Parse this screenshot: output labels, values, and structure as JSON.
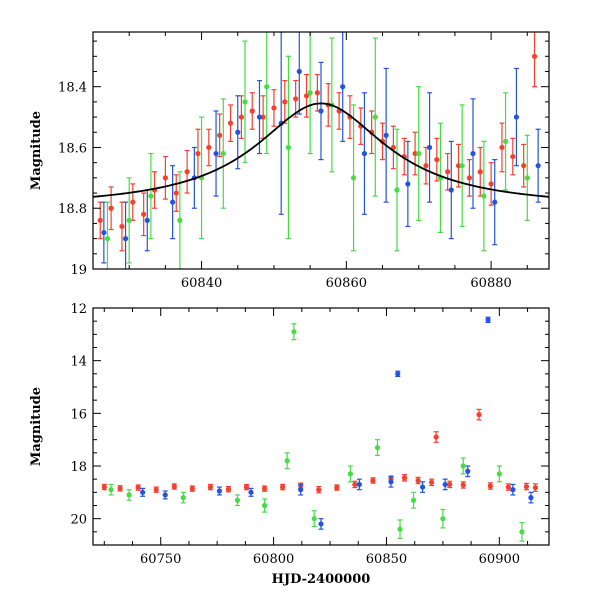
{
  "chart_data": [
    {
      "type": "scatter",
      "title": "",
      "xlabel": "",
      "ylabel": "Magnitude",
      "xlim": [
        60825,
        60888
      ],
      "ylim": [
        19.0,
        18.22
      ],
      "y_inverted": true,
      "x_ticks": [
        60840,
        60860,
        60880
      ],
      "y_ticks": [
        18.4,
        18.6,
        18.8,
        19
      ],
      "y_tick_labels": [
        "18.4",
        "18.6",
        "18.8",
        "19"
      ],
      "grid": false,
      "legend": "none",
      "series": [
        {
          "color": "#f5402e",
          "points": [
            [
              60826,
              18.84,
              0.06
            ],
            [
              60827.5,
              18.8,
              0.07
            ],
            [
              60829,
              18.86,
              0.08
            ],
            [
              60830.5,
              18.78,
              0.06
            ],
            [
              60832,
              18.82,
              0.07
            ],
            [
              60833.5,
              18.74,
              0.06
            ],
            [
              60835,
              18.7,
              0.07
            ],
            [
              60836.5,
              18.75,
              0.06
            ],
            [
              60838,
              18.68,
              0.07
            ],
            [
              60839.5,
              18.62,
              0.08
            ],
            [
              60841,
              18.6,
              0.06
            ],
            [
              60842.5,
              18.56,
              0.07
            ],
            [
              60844,
              18.52,
              0.06
            ],
            [
              60845.5,
              18.5,
              0.07
            ],
            [
              60847,
              18.48,
              0.06
            ],
            [
              60848.5,
              18.5,
              0.07
            ],
            [
              60850,
              18.47,
              0.06
            ],
            [
              60851.5,
              18.45,
              0.07
            ],
            [
              60853,
              18.44,
              0.06
            ],
            [
              60854.5,
              18.43,
              0.07
            ],
            [
              60856,
              18.42,
              0.06
            ],
            [
              60857.5,
              18.46,
              0.07
            ],
            [
              60859,
              18.48,
              0.06
            ],
            [
              60860.5,
              18.5,
              0.07
            ],
            [
              60862,
              18.53,
              0.06
            ],
            [
              60863.5,
              18.55,
              0.07
            ],
            [
              60865,
              18.58,
              0.06
            ],
            [
              60866.5,
              18.6,
              0.07
            ],
            [
              60868,
              18.63,
              0.06
            ],
            [
              60869.5,
              18.62,
              0.07
            ],
            [
              60871,
              18.66,
              0.06
            ],
            [
              60872.5,
              18.64,
              0.07
            ],
            [
              60874,
              18.68,
              0.06
            ],
            [
              60875.5,
              18.66,
              0.07
            ],
            [
              60877,
              18.7,
              0.06
            ],
            [
              60878.5,
              18.68,
              0.08
            ],
            [
              60880,
              18.72,
              0.07
            ],
            [
              60881.5,
              18.6,
              0.08
            ],
            [
              60883,
              18.63,
              0.06
            ],
            [
              60884.5,
              18.66,
              0.07
            ],
            [
              60886,
              18.3,
              0.1
            ]
          ]
        },
        {
          "color": "#2255dd",
          "points": [
            [
              60826.5,
              18.88,
              0.1
            ],
            [
              60829.5,
              18.9,
              0.12
            ],
            [
              60832.5,
              18.84,
              0.1
            ],
            [
              60836,
              18.78,
              0.12
            ],
            [
              60839,
              18.7,
              0.1
            ],
            [
              60842,
              18.62,
              0.14
            ],
            [
              60845,
              18.55,
              0.12
            ],
            [
              60848,
              18.5,
              0.12
            ],
            [
              60851,
              18.52,
              0.3
            ],
            [
              60853.5,
              18.35,
              0.14
            ],
            [
              60856.5,
              18.48,
              0.16
            ],
            [
              60859.5,
              18.4,
              0.18
            ],
            [
              60862.5,
              18.62,
              0.2
            ],
            [
              60865.5,
              18.56,
              0.22
            ],
            [
              60868.5,
              18.72,
              0.14
            ],
            [
              60871.5,
              18.6,
              0.18
            ],
            [
              60874.5,
              18.74,
              0.16
            ],
            [
              60877.5,
              18.62,
              0.18
            ],
            [
              60880.5,
              18.78,
              0.14
            ],
            [
              60883.5,
              18.5,
              0.16
            ],
            [
              60886.5,
              18.66,
              0.12
            ]
          ]
        },
        {
          "color": "#44dd44",
          "points": [
            [
              60827,
              18.9,
              0.12
            ],
            [
              60830,
              18.84,
              0.14
            ],
            [
              60833,
              18.76,
              0.14
            ],
            [
              60837,
              18.84,
              0.16
            ],
            [
              60840,
              18.7,
              0.2
            ],
            [
              60843,
              18.62,
              0.18
            ],
            [
              60846,
              18.45,
              0.2
            ],
            [
              60849,
              18.4,
              0.22
            ],
            [
              60852,
              18.6,
              0.3
            ],
            [
              60855,
              18.42,
              0.2
            ],
            [
              60858,
              18.46,
              0.22
            ],
            [
              60861,
              18.7,
              0.24
            ],
            [
              60864,
              18.5,
              0.26
            ],
            [
              60867,
              18.74,
              0.2
            ],
            [
              60870,
              18.62,
              0.22
            ],
            [
              60873,
              18.7,
              0.18
            ],
            [
              60876,
              18.66,
              0.2
            ],
            [
              60879,
              18.76,
              0.18
            ],
            [
              60882,
              18.58,
              0.16
            ],
            [
              60885,
              18.7,
              0.14
            ]
          ]
        }
      ],
      "model_curve": {
        "color": "#000000",
        "baseline": 18.8,
        "peak_mag": 18.455,
        "t_peak": 60856.5,
        "width_days": 11
      }
    },
    {
      "type": "scatter",
      "title": "",
      "xlabel": "HJD-2400000",
      "ylabel": "Magnitude",
      "xlim": [
        60720,
        60922
      ],
      "ylim": [
        21,
        12
      ],
      "y_inverted": true,
      "x_ticks": [
        60750,
        60800,
        60850,
        60900
      ],
      "y_ticks": [
        12,
        14,
        16,
        18,
        20
      ],
      "y_tick_labels": [
        "12",
        "14",
        "16",
        "18",
        "20"
      ],
      "grid": false,
      "legend": "none",
      "series": [
        {
          "color": "#f5402e",
          "points": [
            [
              60725,
              18.8,
              0.1
            ],
            [
              60732,
              18.85,
              0.1
            ],
            [
              60740,
              18.82,
              0.1
            ],
            [
              60748,
              18.9,
              0.1
            ],
            [
              60756,
              18.78,
              0.1
            ],
            [
              60764,
              18.86,
              0.1
            ],
            [
              60772,
              18.8,
              0.1
            ],
            [
              60780,
              18.88,
              0.1
            ],
            [
              60788,
              18.8,
              0.1
            ],
            [
              60796,
              18.86,
              0.1
            ],
            [
              60804,
              18.8,
              0.1
            ],
            [
              60812,
              18.75,
              0.1
            ],
            [
              60820,
              18.9,
              0.12
            ],
            [
              60828,
              18.82,
              0.1
            ],
            [
              60836,
              18.7,
              0.12
            ],
            [
              60844,
              18.55,
              0.1
            ],
            [
              60852,
              18.48,
              0.1
            ],
            [
              60858,
              18.45,
              0.12
            ],
            [
              60864,
              18.55,
              0.12
            ],
            [
              60870,
              18.62,
              0.12
            ],
            [
              60872,
              16.9,
              0.2
            ],
            [
              60878,
              18.7,
              0.12
            ],
            [
              60884,
              18.72,
              0.12
            ],
            [
              60891,
              16.05,
              0.2
            ],
            [
              60896,
              18.76,
              0.12
            ],
            [
              60904,
              18.8,
              0.12
            ],
            [
              60912,
              18.78,
              0.12
            ],
            [
              60916,
              18.82,
              0.14
            ]
          ]
        },
        {
          "color": "#2255dd",
          "points": [
            [
              60742,
              19.0,
              0.15
            ],
            [
              60752,
              19.1,
              0.15
            ],
            [
              60776,
              18.95,
              0.15
            ],
            [
              60790,
              19.0,
              0.15
            ],
            [
              60812,
              18.9,
              0.2
            ],
            [
              60821,
              20.2,
              0.2
            ],
            [
              60838,
              18.7,
              0.2
            ],
            [
              60852,
              18.6,
              0.2
            ],
            [
              60855,
              14.5,
              0.1
            ],
            [
              60866,
              18.8,
              0.2
            ],
            [
              60876,
              18.7,
              0.2
            ],
            [
              60886,
              18.2,
              0.2
            ],
            [
              60895,
              12.45,
              0.1
            ],
            [
              60906,
              18.9,
              0.2
            ],
            [
              60914,
              19.2,
              0.2
            ]
          ]
        },
        {
          "color": "#44dd44",
          "points": [
            [
              60728,
              18.9,
              0.2
            ],
            [
              60736,
              19.1,
              0.2
            ],
            [
              60760,
              19.2,
              0.2
            ],
            [
              60784,
              19.3,
              0.2
            ],
            [
              60796,
              19.5,
              0.25
            ],
            [
              60806,
              17.8,
              0.3
            ],
            [
              60809,
              12.9,
              0.3
            ],
            [
              60818,
              20.0,
              0.3
            ],
            [
              60834,
              18.3,
              0.3
            ],
            [
              60846,
              17.3,
              0.3
            ],
            [
              60856,
              20.4,
              0.35
            ],
            [
              60862,
              19.3,
              0.3
            ],
            [
              60875,
              20.0,
              0.35
            ],
            [
              60884,
              18.0,
              0.3
            ],
            [
              60900,
              18.3,
              0.3
            ],
            [
              60910,
              20.5,
              0.35
            ]
          ]
        }
      ]
    }
  ]
}
